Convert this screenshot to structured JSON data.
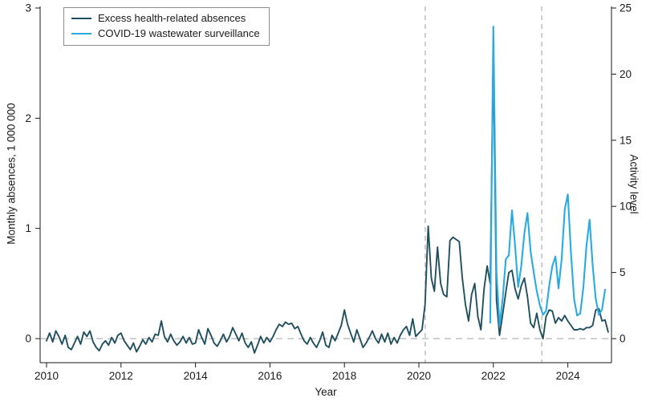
{
  "figure": {
    "legend": [
      {
        "label": "Excess health-related absences",
        "color": "#20505f"
      },
      {
        "label": "COVID-19 wastewater surveillance",
        "color": "#29abe2"
      }
    ],
    "left_axis": {
      "title": "Monthly absences, 1 000 000",
      "ticks": [
        0,
        1,
        2,
        3
      ],
      "range": [
        0,
        3
      ]
    },
    "right_axis": {
      "title": "Activity level",
      "ticks": [
        0,
        5,
        10,
        15,
        20,
        25
      ],
      "range": [
        0,
        25
      ]
    },
    "x_axis": {
      "title": "Year",
      "ticks": [
        2010,
        2012,
        2014,
        2016,
        2018,
        2020,
        2022,
        2024
      ],
      "range": [
        2009.828,
        2025.172
      ]
    },
    "reference_color": "#b3b3b3"
  },
  "chart_data": {
    "type": "line",
    "title": "",
    "xlabel": "Year",
    "ylabel_left": "Monthly absences, 1 000 000",
    "ylabel_right": "Activity level",
    "x_unit": "decimal_year",
    "grid": false,
    "legend_position": "top-left",
    "annotations": {
      "vertical_dashed_lines_years": [
        2020.17,
        2023.3
      ],
      "horizontal_dashed_line_left_axis_value": 0
    },
    "series": [
      {
        "name": "Excess health-related absences",
        "axis": "left",
        "start_year": 2010.0,
        "step_years": 0.0833333,
        "values": [
          -0.02,
          0.05,
          -0.03,
          0.07,
          0.02,
          -0.05,
          0.03,
          -0.08,
          -0.1,
          -0.04,
          0.02,
          -0.05,
          0.06,
          0.02,
          0.07,
          -0.03,
          -0.08,
          -0.11,
          -0.05,
          -0.02,
          -0.06,
          0.01,
          -0.04,
          0.03,
          0.05,
          -0.02,
          -0.06,
          -0.1,
          -0.04,
          -0.12,
          -0.07,
          -0.01,
          -0.05,
          0.01,
          -0.03,
          0.04,
          0.03,
          0.16,
          0.02,
          -0.03,
          0.04,
          -0.02,
          -0.06,
          -0.03,
          0.02,
          -0.04,
          0.01,
          -0.05,
          -0.04,
          0.08,
          0.01,
          -0.05,
          0.09,
          0.03,
          -0.04,
          -0.07,
          -0.02,
          0.04,
          -0.03,
          0.02,
          0.1,
          0.04,
          -0.02,
          0.05,
          -0.04,
          -0.08,
          -0.03,
          -0.13,
          -0.06,
          0.02,
          -0.04,
          0.01,
          -0.03,
          0.02,
          0.08,
          0.13,
          0.11,
          0.15,
          0.13,
          0.14,
          0.09,
          0.11,
          0.04,
          -0.02,
          -0.05,
          0.01,
          -0.04,
          -0.08,
          -0.02,
          0.06,
          -0.06,
          -0.08,
          0.03,
          -0.02,
          0.05,
          0.12,
          0.26,
          0.13,
          0.05,
          -0.03,
          0.08,
          0.0,
          -0.08,
          -0.04,
          0.01,
          0.07,
          0.0,
          -0.04,
          0.04,
          -0.03,
          0.05,
          -0.05,
          0.01,
          -0.04,
          0.03,
          0.08,
          0.11,
          0.03,
          0.18,
          0.02,
          0.05,
          0.08,
          0.31,
          1.02,
          0.55,
          0.43,
          0.83,
          0.5,
          0.4,
          0.38,
          0.89,
          0.92,
          0.9,
          0.88,
          0.55,
          0.31,
          0.16,
          0.4,
          0.5,
          0.2,
          0.08,
          0.45,
          0.66,
          0.5,
          2.58,
          0.35,
          0.03,
          0.22,
          0.42,
          0.6,
          0.62,
          0.45,
          0.36,
          0.48,
          0.55,
          0.38,
          0.14,
          0.1,
          0.23,
          0.08,
          0.0,
          0.2,
          0.26,
          0.25,
          0.14,
          0.19,
          0.16,
          0.21,
          0.16,
          0.12,
          0.08,
          0.08,
          0.09,
          0.08,
          0.1,
          0.1,
          0.12,
          0.26,
          0.27,
          0.16,
          0.17,
          0.06
        ]
      },
      {
        "name": "COVID-19 wastewater surveillance",
        "axis": "right",
        "start_year": 2021.9167,
        "step_years": 0.0833333,
        "values": [
          1.2,
          23.6,
          5.0,
          1.0,
          3.0,
          6.0,
          6.3,
          9.7,
          7.0,
          3.9,
          5.5,
          8.0,
          9.5,
          6.6,
          5.0,
          3.6,
          2.5,
          1.8,
          2.1,
          4.0,
          5.5,
          6.2,
          3.8,
          6.0,
          9.8,
          10.9,
          6.5,
          3.0,
          1.75,
          1.9,
          3.9,
          7.0,
          9.0,
          5.5,
          3.0,
          1.8,
          2.2,
          3.7
        ]
      }
    ]
  }
}
